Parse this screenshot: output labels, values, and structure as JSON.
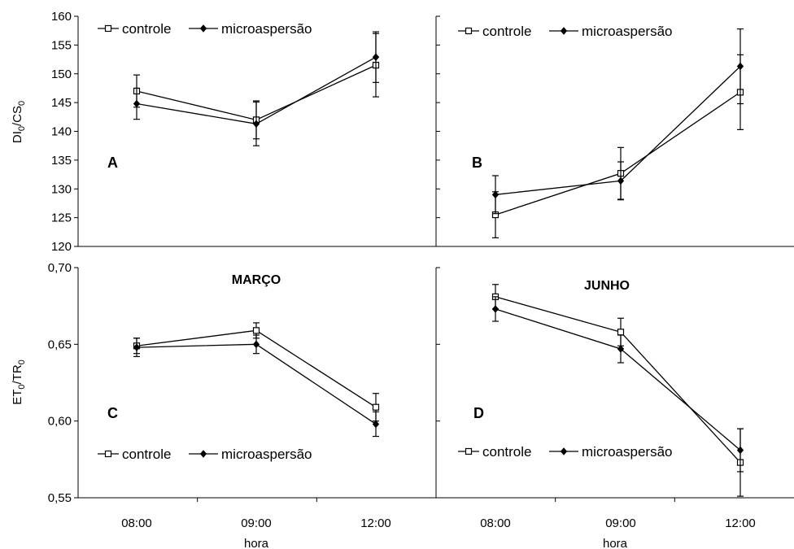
{
  "chart_data": [
    {
      "type": "line",
      "panel": "A",
      "title": "",
      "xlabel": "",
      "ylabel": "DI0/CS0",
      "ylabel_main": "DI",
      "ylabel_sub1": "0",
      "ylabel_mid": "/CS",
      "ylabel_sub2": "0",
      "ylim": [
        120,
        160
      ],
      "yticks": [
        "120",
        "125",
        "130",
        "135",
        "140",
        "145",
        "150",
        "155",
        "160"
      ],
      "categories": [
        "08:00",
        "09:00",
        "12:00"
      ],
      "legend": "top-left",
      "series": [
        {
          "name": "controle",
          "marker": "open-square",
          "values": [
            147.0,
            142.0,
            151.5
          ],
          "err": [
            2.8,
            3.3,
            5.5
          ]
        },
        {
          "name": "microaspersão",
          "marker": "filled-diamond",
          "values": [
            144.8,
            141.3,
            152.9
          ],
          "err": [
            2.7,
            3.8,
            4.4
          ]
        }
      ]
    },
    {
      "type": "line",
      "panel": "B",
      "title": "",
      "xlabel": "",
      "ylabel": "",
      "ylim": [
        120,
        160
      ],
      "categories": [
        "08:00",
        "09:00",
        "12:00"
      ],
      "legend": "top-left",
      "series": [
        {
          "name": "controle",
          "marker": "open-square",
          "values": [
            125.5,
            132.7,
            146.8
          ],
          "err": [
            4.0,
            4.5,
            6.5
          ]
        },
        {
          "name": "microaspersão",
          "marker": "filled-diamond",
          "values": [
            129.0,
            131.4,
            151.3
          ],
          "err": [
            3.3,
            3.3,
            6.5
          ]
        }
      ]
    },
    {
      "type": "line",
      "panel": "C",
      "title": "MARÇO",
      "xlabel": "hora",
      "ylabel": "ET0/TR0",
      "ylabel_main": "ET",
      "ylabel_sub1": "0",
      "ylabel_mid": "/TR",
      "ylabel_sub2": "0",
      "ylim": [
        0.55,
        0.7
      ],
      "yticks": [
        "0,55",
        "0,60",
        "0,65",
        "0,70"
      ],
      "categories": [
        "08:00",
        "09:00",
        "12:00"
      ],
      "legend": "bottom-left",
      "series": [
        {
          "name": "controle",
          "marker": "open-square",
          "values": [
            0.649,
            0.659,
            0.609
          ],
          "err": [
            0.005,
            0.005,
            0.009
          ]
        },
        {
          "name": "microaspersão",
          "marker": "filled-diamond",
          "values": [
            0.648,
            0.65,
            0.598
          ],
          "err": [
            0.006,
            0.006,
            0.008
          ]
        }
      ]
    },
    {
      "type": "line",
      "panel": "D",
      "title": "JUNHO",
      "xlabel": "hora",
      "ylabel": "",
      "ylim": [
        0.55,
        0.7
      ],
      "categories": [
        "08:00",
        "09:00",
        "12:00"
      ],
      "legend": "bottom-left",
      "series": [
        {
          "name": "controle",
          "marker": "open-square",
          "values": [
            0.681,
            0.658,
            0.573
          ],
          "err": [
            0.008,
            0.009,
            0.022
          ]
        },
        {
          "name": "microaspersão",
          "marker": "filled-diamond",
          "values": [
            0.673,
            0.647,
            0.581
          ],
          "err": [
            0.008,
            0.009,
            0.014
          ]
        }
      ]
    }
  ]
}
